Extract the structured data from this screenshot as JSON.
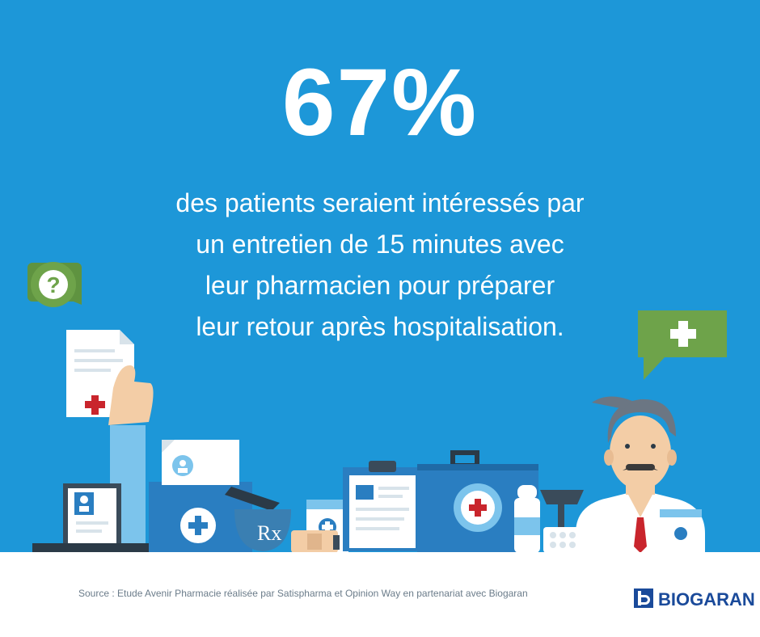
{
  "headline": {
    "stat": "67%"
  },
  "description": {
    "lines": [
      "des patients seraient intéressés par",
      "un entretien de 15 minutes avec",
      "leur pharmacien pour préparer",
      "leur retour après hospitalisation."
    ]
  },
  "illustration": {
    "question_bubble_symbol": "?",
    "rx_symbol": "Rx",
    "colors": {
      "background": "#1d97d8",
      "bubble_green": "#6ea34a",
      "medical_red": "#c9252c",
      "case_blue": "#2a7ec1"
    }
  },
  "footer": {
    "source": "Source : Etude Avenir Pharmacie réalisée par Satispharma et Opinion Way en partenariat avec Biogaran",
    "logo_text": "BIOGARAN"
  }
}
